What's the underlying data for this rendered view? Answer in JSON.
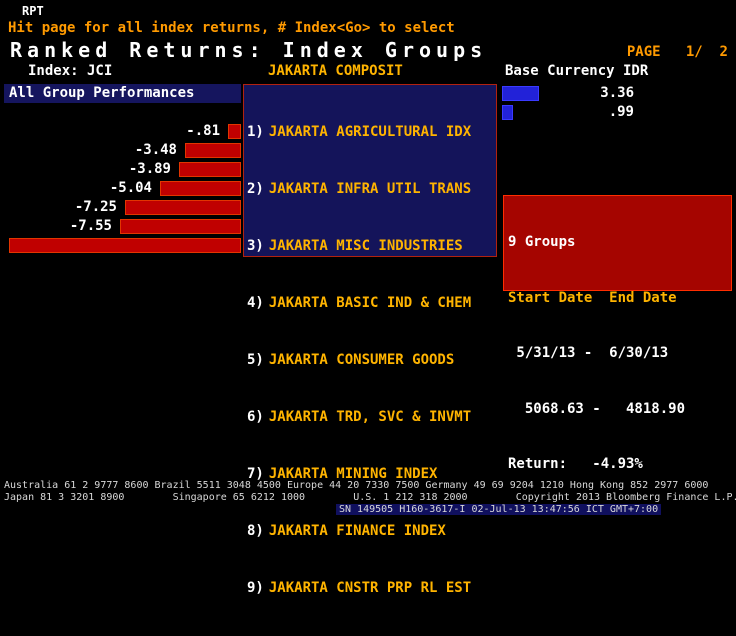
{
  "header": {
    "app": "RPT",
    "hint": "Hit page for all index returns, # Index<Go> to select",
    "title": "Ranked Returns: Index Groups",
    "page": "PAGE   1/  2",
    "index_label": "Index: JCI",
    "index_name": "JAKARTA COMPOSIT",
    "base_currency": "Base Currency IDR"
  },
  "controls": {
    "all_groups_button": "All Group Performances"
  },
  "groups": [
    {
      "num": "1)",
      "name": "JAKARTA AGRICULTURAL IDX",
      "value": "3.36"
    },
    {
      "num": "2)",
      "name": "JAKARTA INFRA UTIL TRANS",
      "value": ".99"
    },
    {
      "num": "3)",
      "name": "JAKARTA MISC INDUSTRIES",
      "value": "-.81"
    },
    {
      "num": "4)",
      "name": "JAKARTA BASIC IND & CHEM",
      "value": "-3.48"
    },
    {
      "num": "5)",
      "name": "JAKARTA CONSUMER GOODS",
      "value": "-3.89"
    },
    {
      "num": "6)",
      "name": "JAKARTA TRD, SVC & INVMT",
      "value": "-5.04"
    },
    {
      "num": "7)",
      "name": "JAKARTA MINING INDEX",
      "value": "-7.25"
    },
    {
      "num": "8)",
      "name": "JAKARTA FINANCE INDEX",
      "value": "-7.55"
    },
    {
      "num": "9)",
      "name": "JAKARTA CNSTR PRP RL EST",
      "value": "-14.51"
    }
  ],
  "chart_data": {
    "type": "bar",
    "orientation": "horizontal",
    "title": "Ranked Returns: Index Groups",
    "categories": [
      "JAKARTA AGRICULTURAL IDX",
      "JAKARTA INFRA UTIL TRANS",
      "JAKARTA MISC INDUSTRIES",
      "JAKARTA BASIC IND & CHEM",
      "JAKARTA CONSUMER GOODS",
      "JAKARTA TRD, SVC & INVMT",
      "JAKARTA MINING INDEX",
      "JAKARTA FINANCE INDEX",
      "JAKARTA CNSTR PRP RL EST"
    ],
    "values": [
      3.36,
      0.99,
      -0.81,
      -3.48,
      -3.89,
      -5.04,
      -7.25,
      -7.55,
      -14.51
    ],
    "positive_color": "#2222d8",
    "negative_color": "#c00000",
    "period": "5/31/13 - 6/30/13",
    "index_start": 5068.63,
    "index_end": 4818.9,
    "total_return_pct": -4.93
  },
  "summary": {
    "groups_count": "9 Groups",
    "dates_header": "Start Date  End Date",
    "date_range": " 5/31/13 -  6/30/13",
    "value_range": "  5068.63 -   4818.90",
    "return_line": "Return:   -4.93%"
  },
  "footer": {
    "line1": "Australia 61 2 9777 8600 Brazil 5511 3048 4500 Europe 44 20 7330 7500 Germany 49 69 9204 1210 Hong Kong 852 2977 6000",
    "line2": "Japan 81 3 3201 8900        Singapore 65 6212 1000        U.S. 1 212 318 2000        Copyright 2013 Bloomberg Finance L.P.",
    "line3": "SN 149505 H160-3617-I 02-Jul-13 13:47:56 ICT GMT+7:00"
  },
  "colors": {
    "accent_orange": "#ff9a00",
    "list_amber": "#ffb400",
    "navy_panel": "#14145a",
    "bar_red": "#c00000",
    "bar_blue": "#2222d8",
    "summary_red": "#a50500"
  }
}
